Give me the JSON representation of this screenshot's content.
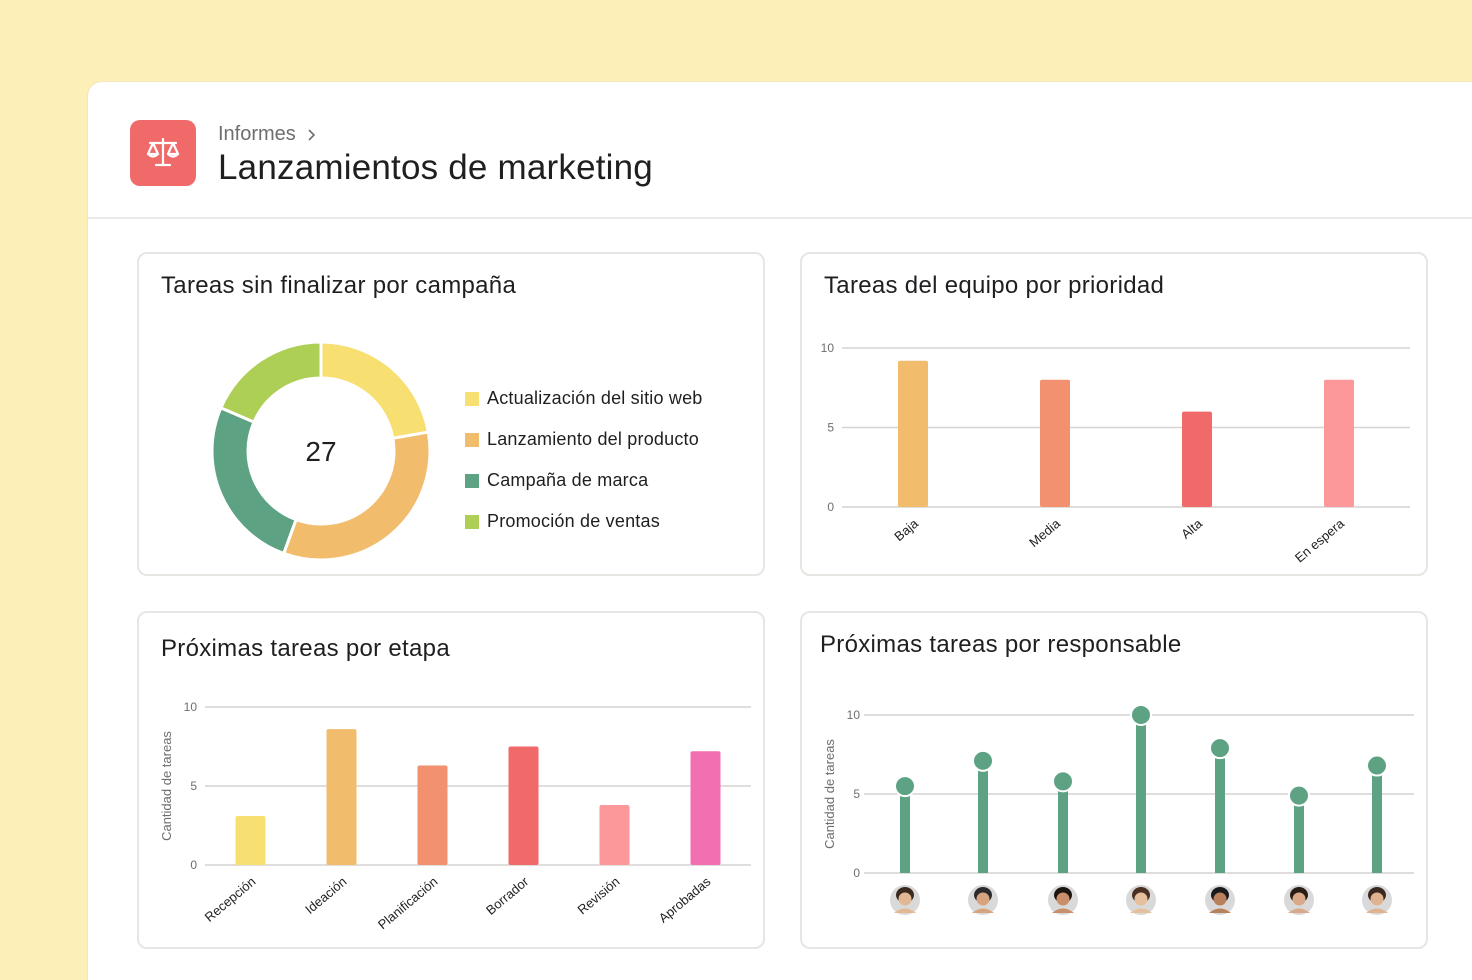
{
  "header": {
    "breadcrumb": "Informes",
    "title": "Lanzamientos de marketing",
    "icon": "scales-icon",
    "icon_color": "#f06a6a"
  },
  "chart_data": [
    {
      "id": "campaign",
      "type": "pie",
      "title": "Tareas sin finalizar por campaña",
      "center_label": "27",
      "categories": [
        "Actualización del sitio web",
        "Lanzamiento del producto",
        "Campaña de marca",
        "Promoción de ventas"
      ],
      "values": [
        6,
        9,
        7,
        5
      ],
      "colors": [
        "#f8df72",
        "#f1bd6c",
        "#5da283",
        "#aecf55"
      ]
    },
    {
      "id": "priority",
      "type": "bar",
      "title": "Tareas del equipo por prioridad",
      "categories": [
        "Baja",
        "Media",
        "Alta",
        "En espera"
      ],
      "values": [
        9.2,
        8,
        6,
        8
      ],
      "colors": [
        "#f1bd6c",
        "#f1916f",
        "#f06a6a",
        "#fc979a"
      ],
      "ylim": [
        0,
        10
      ],
      "yticks": [
        "0",
        "5",
        "10"
      ],
      "ylabel": ""
    },
    {
      "id": "stage",
      "type": "bar",
      "title": "Próximas tareas por etapa",
      "categories": [
        "Recepción",
        "Ideación",
        "Planificación",
        "Borrador",
        "Revisión",
        "Aprobadas"
      ],
      "values": [
        3.1,
        8.6,
        6.3,
        7.5,
        3.8,
        7.2
      ],
      "colors": [
        "#f8df72",
        "#f1bd6c",
        "#f1916f",
        "#f06a6a",
        "#fc979a",
        "#f26fb2"
      ],
      "ylim": [
        0,
        10
      ],
      "yticks": [
        "0",
        "5",
        "10"
      ],
      "ylabel": "Cantidad de tareas"
    },
    {
      "id": "assignee",
      "type": "scatter",
      "title": "Próximas tareas por responsable",
      "categories": [
        "avatar-1",
        "avatar-2",
        "avatar-3",
        "avatar-4",
        "avatar-5",
        "avatar-6",
        "avatar-7"
      ],
      "values": [
        5.5,
        7.1,
        5.8,
        10,
        7.9,
        4.9,
        6.8
      ],
      "color": "#5da283",
      "ylim": [
        0,
        10
      ],
      "yticks": [
        "0",
        "5",
        "10"
      ],
      "ylabel": "Cantidad de tareas"
    }
  ]
}
